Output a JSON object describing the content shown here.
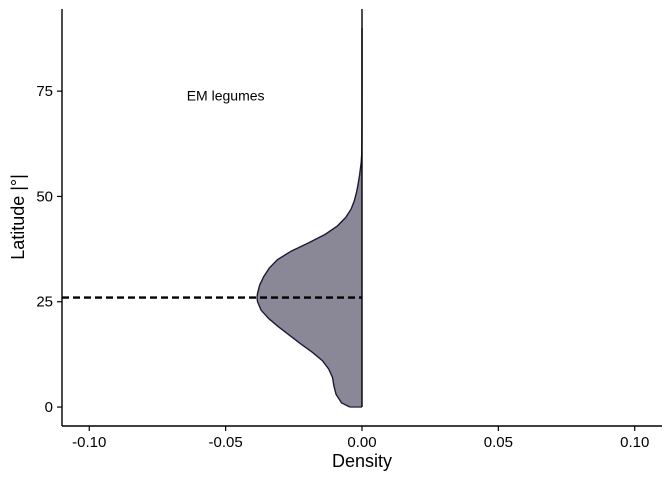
{
  "chart_data": {
    "type": "area",
    "title": "",
    "xlabel": "Density",
    "ylabel": "Latitude |°|",
    "xlim": [
      -0.11,
      0.11
    ],
    "ylim": [
      -4.5,
      94.5
    ],
    "xticks": [
      -0.1,
      -0.05,
      0.0,
      0.05,
      0.1
    ],
    "xtick_labels": [
      "-0.10",
      "-0.05",
      "0.00",
      "0.05",
      "0.10"
    ],
    "yticks": [
      0,
      25,
      50,
      75
    ],
    "ytick_labels": [
      "0",
      "25",
      "50",
      "75"
    ],
    "grid": false,
    "legend": "none",
    "annotation": {
      "text": "EM legumes",
      "x": -0.05,
      "y": 74
    },
    "reference_line": {
      "y": 26,
      "style": "dashed",
      "color": "#000000"
    },
    "zero_line": {
      "x": 0,
      "color": "#000000"
    },
    "series": [
      {
        "fill_color": "#8a8797",
        "line_color": "#1c1a3a",
        "y": [
          0,
          1,
          3,
          5,
          7,
          9,
          11,
          13,
          15,
          17,
          19,
          21,
          23,
          25,
          26,
          27,
          29,
          31,
          33,
          35,
          37,
          39,
          41,
          43,
          45,
          47,
          49,
          51,
          53,
          55,
          57,
          58,
          60,
          62,
          66,
          70,
          75,
          80,
          85,
          90
        ],
        "density": [
          -0.0045,
          -0.0075,
          -0.0095,
          -0.0103,
          -0.0108,
          -0.0122,
          -0.0145,
          -0.0182,
          -0.0225,
          -0.0265,
          -0.0305,
          -0.0342,
          -0.037,
          -0.0383,
          -0.0385,
          -0.0383,
          -0.0375,
          -0.036,
          -0.034,
          -0.031,
          -0.026,
          -0.0195,
          -0.0135,
          -0.009,
          -0.006,
          -0.004,
          -0.0028,
          -0.002,
          -0.0014,
          -0.0009,
          -0.0005,
          -0.0003,
          -0.0001,
          -5e-05,
          -2e-05,
          -1e-05,
          0,
          0,
          0,
          0
        ]
      }
    ]
  }
}
